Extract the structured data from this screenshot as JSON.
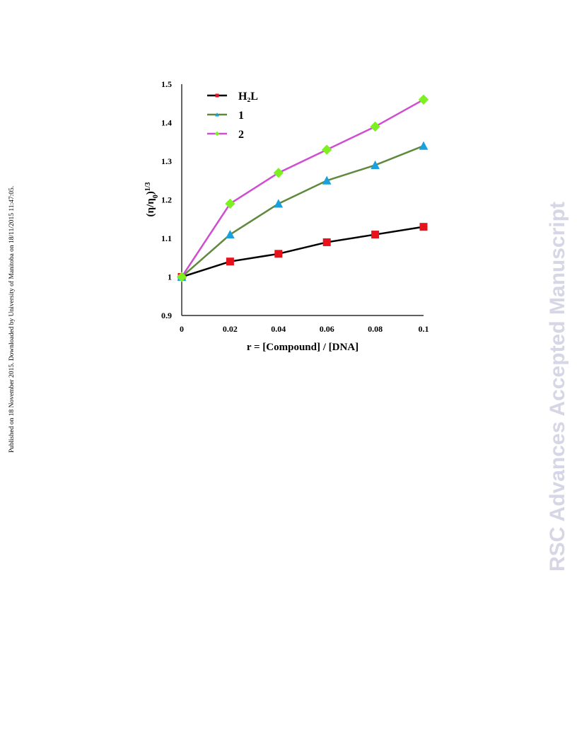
{
  "page": {
    "side_note": "Published on 18 November 2015. Downloaded by University of Manitoba on 18/11/2015 11:47:05.",
    "watermark": "RSC Advances Accepted Manuscript"
  },
  "chart_data": {
    "type": "line",
    "title": "",
    "xlabel": "r = [Compound] / [DNA]",
    "ylabel_base": "(η/η",
    "ylabel_sub": "0",
    "ylabel_close": ")",
    "ylabel_sup": "1/3",
    "x": [
      0,
      0.02,
      0.04,
      0.06,
      0.08,
      0.1
    ],
    "x_tick_labels": [
      "0",
      "0.02",
      "0.04",
      "0.06",
      "0.08",
      "0.1"
    ],
    "ylim": [
      0.9,
      1.5
    ],
    "y_tick_values": [
      0.9,
      1,
      1.1,
      1.2,
      1.3,
      1.4,
      1.5
    ],
    "y_tick_labels": [
      "0.9",
      "1",
      "1.1",
      "1.2",
      "1.3",
      "1.4",
      "1.5"
    ],
    "grid": false,
    "legend_position": "top-left",
    "series": [
      {
        "name": "H₂L",
        "values": [
          1.0,
          1.04,
          1.06,
          1.09,
          1.11,
          1.13
        ],
        "line_color": "#000000",
        "marker_color": "#e8121c",
        "marker": "square"
      },
      {
        "name": "1",
        "values": [
          1.0,
          1.11,
          1.19,
          1.25,
          1.29,
          1.34
        ],
        "line_color": "#5f8a3e",
        "marker_color": "#1aa0dc",
        "marker": "triangle"
      },
      {
        "name": "2",
        "values": [
          1.0,
          1.19,
          1.27,
          1.33,
          1.39,
          1.46
        ],
        "line_color": "#cf4dd1",
        "marker_color": "#7cf021",
        "marker": "diamond"
      }
    ]
  }
}
